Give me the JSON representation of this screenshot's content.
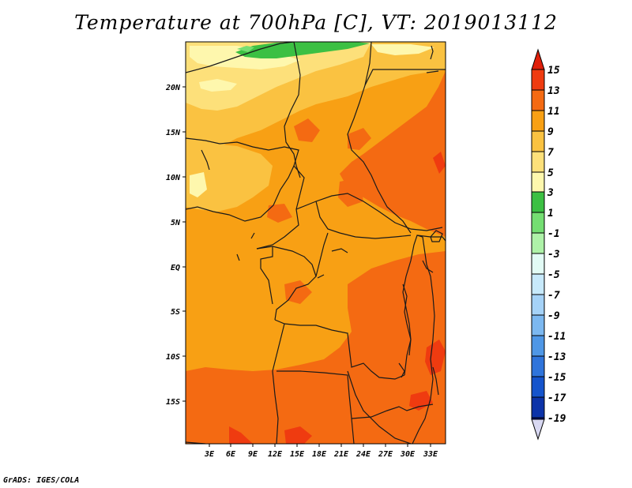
{
  "title": "Temperature at 700hPa [C], VT: 2019013112",
  "footer": "GrADS: IGES/COLA",
  "map": {
    "lat_labels": [
      "20N",
      "15N",
      "10N",
      "5N",
      "EQ",
      "5S",
      "10S",
      "15S"
    ],
    "lon_labels": [
      "3E",
      "6E",
      "9E",
      "12E",
      "15E",
      "18E",
      "21E",
      "24E",
      "27E",
      "30E",
      "33E"
    ]
  },
  "colorbar": {
    "labels": [
      "15",
      "13",
      "11",
      "9",
      "7",
      "5",
      "3",
      "1",
      "-1",
      "-3",
      "-5",
      "-7",
      "-9",
      "-11",
      "-13",
      "-15",
      "-17",
      "-19"
    ],
    "colors": [
      "#e01f0a",
      "#ef3b10",
      "#f46a12",
      "#f8a014",
      "#fac241",
      "#fde07a",
      "#fef7ad",
      "#3cc043",
      "#74de72",
      "#aef2a8",
      "#e2fbf5",
      "#c7e9fb",
      "#a5d2f7",
      "#7cb8f0",
      "#4f97e6",
      "#2f74db",
      "#1554cc",
      "#0c33a8",
      "#08157a",
      "#d8d8f2"
    ]
  }
}
